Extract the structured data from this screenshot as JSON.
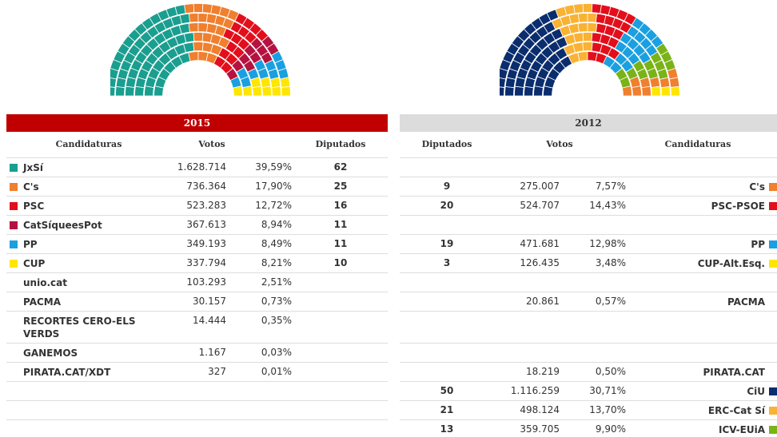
{
  "left": {
    "year": "2015",
    "header_color": "#c00000",
    "columns": [
      "Candidaturas",
      "Votos",
      "Diputados"
    ],
    "hemicycle_order": [
      0,
      1,
      2,
      3,
      4,
      5
    ],
    "rows": [
      {
        "party": "JxSí",
        "color": "#1a9e8f",
        "votos": "1.628.714",
        "pct": "39,59%",
        "diputados": 62
      },
      {
        "party": "C's",
        "color": "#f07f2e",
        "votos": "736.364",
        "pct": "17,90%",
        "diputados": 25
      },
      {
        "party": "PSC",
        "color": "#e30e1b",
        "votos": "523.283",
        "pct": "12,72%",
        "diputados": 16
      },
      {
        "party": "CatSíqueesPot",
        "color": "#b5123f",
        "votos": "367.613",
        "pct": "8,94%",
        "diputados": 11
      },
      {
        "party": "PP",
        "color": "#1aa0e0",
        "votos": "349.193",
        "pct": "8,49%",
        "diputados": 11
      },
      {
        "party": "CUP",
        "color": "#ffe600",
        "votos": "337.794",
        "pct": "8,21%",
        "diputados": 10
      },
      {
        "party": "unio.cat",
        "votos": "103.293",
        "pct": "2,51%"
      },
      {
        "party": "PACMA",
        "votos": "30.157",
        "pct": "0,73%"
      },
      {
        "party": "RECORTES CERO-ELS VERDS",
        "votos": "14.444",
        "pct": "0,35%"
      },
      {
        "party": "GANEMOS",
        "votos": "1.167",
        "pct": "0,03%"
      },
      {
        "party": "PIRATA.CAT/XDT",
        "votos": "327",
        "pct": "0,01%"
      },
      null,
      null,
      null
    ]
  },
  "right": {
    "year": "2012",
    "header_color": "#dcdcdc",
    "columns": [
      "Diputados",
      "Votos",
      "Candidaturas"
    ],
    "hemicycle_order": [
      11,
      12,
      2,
      4,
      13,
      1,
      5
    ],
    "rows": [
      null,
      {
        "party": "C's",
        "color": "#f07f2e",
        "votos": "275.007",
        "pct": "7,57%",
        "diputados": 9
      },
      {
        "party": "PSC-PSOE",
        "color": "#e30e1b",
        "votos": "524.707",
        "pct": "14,43%",
        "diputados": 20
      },
      null,
      {
        "party": "PP",
        "color": "#1aa0e0",
        "votos": "471.681",
        "pct": "12,98%",
        "diputados": 19
      },
      {
        "party": "CUP-Alt.Esq.",
        "color": "#ffe600",
        "votos": "126.435",
        "pct": "3,48%",
        "diputados": 3
      },
      null,
      {
        "party": "PACMA",
        "votos": "20.861",
        "pct": "0,57%"
      },
      null,
      null,
      {
        "party": "PIRATA.CAT",
        "votos": "18.219",
        "pct": "0,50%"
      },
      {
        "party": "CiU",
        "color": "#0a2d6e",
        "votos": "1.116.259",
        "pct": "30,71%",
        "diputados": 50
      },
      {
        "party": "ERC-Cat Sí",
        "color": "#f9b233",
        "votos": "498.124",
        "pct": "13,70%",
        "diputados": 21
      },
      {
        "party": "ICV-EUiA",
        "color": "#7ab317",
        "votos": "359.705",
        "pct": "9,90%",
        "diputados": 13
      }
    ]
  }
}
